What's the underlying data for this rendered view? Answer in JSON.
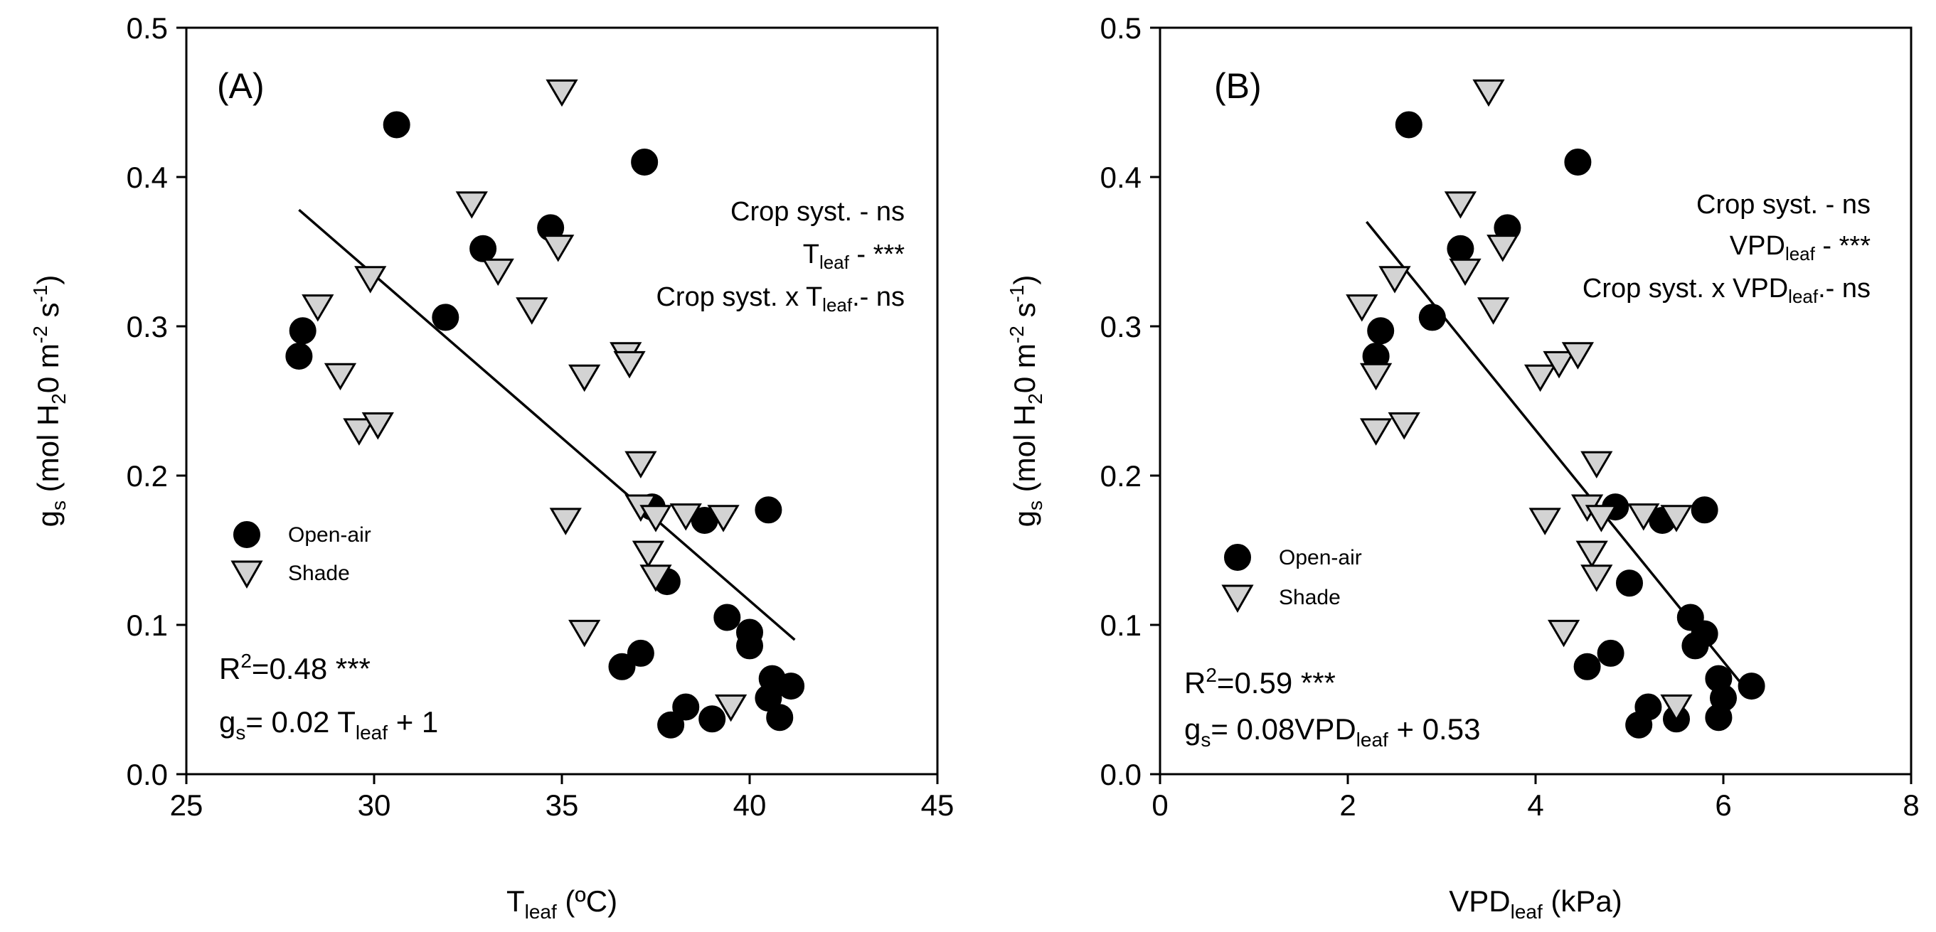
{
  "chart_data": [
    {
      "type": "scatter",
      "panel_label": "(A)",
      "xlabel_main": "T",
      "xlabel_sub": "leaf",
      "xlabel_unit": " (ºC)",
      "ylabel_pre": "g",
      "ylabel_sub": "s",
      "ylabel_mid": " (mol H",
      "ylabel_sub2": "2",
      "ylabel_mid2": "0 m",
      "ylabel_sup1": "-2",
      "ylabel_mid3": " s",
      "ylabel_sup2": "-1",
      "ylabel_end": ")",
      "xlim": [
        25,
        45
      ],
      "ylim": [
        0.0,
        0.5
      ],
      "xticks": [
        "25",
        "30",
        "35",
        "40",
        "45"
      ],
      "yticks": [
        "0.0",
        "0.1",
        "0.2",
        "0.3",
        "0.4",
        "0.5"
      ],
      "annotations": {
        "line1": "Crop syst. - ns",
        "line2_main": "T",
        "line2_sub": "leaf",
        "line2_end": " - ***",
        "line3_main": "Crop syst. x T",
        "line3_sub": "leaf",
        "line3_end": ".- ns"
      },
      "stats": {
        "r2_pre": "R",
        "r2_sup": "2",
        "r2_end": "=0.48 ***",
        "eq_pre": "g",
        "eq_sub": "s",
        "eq_mid": "= 0.02 T",
        "eq_sub2": "leaf",
        "eq_end": " + 1"
      },
      "legend": {
        "open_air": "Open-air",
        "shade": "Shade",
        "position": "lower-left"
      },
      "regression": {
        "x": [
          28.0,
          41.2
        ],
        "y": [
          0.378,
          0.09
        ]
      },
      "series": [
        {
          "name": "Open-air",
          "marker": "circle",
          "color": "#000000",
          "points": [
            [
              28.0,
              0.28
            ],
            [
              28.1,
              0.297
            ],
            [
              30.6,
              0.435
            ],
            [
              31.9,
              0.306
            ],
            [
              32.9,
              0.352
            ],
            [
              34.7,
              0.366
            ],
            [
              37.2,
              0.41
            ],
            [
              37.4,
              0.179
            ],
            [
              37.8,
              0.129
            ],
            [
              38.8,
              0.17
            ],
            [
              36.6,
              0.072
            ],
            [
              37.1,
              0.081
            ],
            [
              37.9,
              0.033
            ],
            [
              38.3,
              0.045
            ],
            [
              39.0,
              0.037
            ],
            [
              39.4,
              0.105
            ],
            [
              40.0,
              0.095
            ],
            [
              40.0,
              0.086
            ],
            [
              40.5,
              0.177
            ],
            [
              40.6,
              0.064
            ],
            [
              40.5,
              0.051
            ],
            [
              40.8,
              0.038
            ],
            [
              41.1,
              0.059
            ]
          ]
        },
        {
          "name": "Shade",
          "marker": "triangle-down",
          "color": "#d3d3d3",
          "points": [
            [
              28.5,
              0.314
            ],
            [
              29.1,
              0.268
            ],
            [
              29.6,
              0.231
            ],
            [
              29.9,
              0.333
            ],
            [
              30.1,
              0.235
            ],
            [
              32.6,
              0.383
            ],
            [
              33.3,
              0.338
            ],
            [
              34.2,
              0.312
            ],
            [
              35.0,
              0.458
            ],
            [
              34.9,
              0.354
            ],
            [
              35.1,
              0.171
            ],
            [
              35.6,
              0.267
            ],
            [
              35.6,
              0.096
            ],
            [
              36.7,
              0.282
            ],
            [
              36.8,
              0.276
            ],
            [
              37.1,
              0.209
            ],
            [
              37.1,
              0.18
            ],
            [
              37.5,
              0.173
            ],
            [
              37.3,
              0.149
            ],
            [
              37.5,
              0.133
            ],
            [
              38.3,
              0.174
            ],
            [
              39.3,
              0.173
            ],
            [
              39.5,
              0.046
            ]
          ]
        }
      ]
    },
    {
      "type": "scatter",
      "panel_label": "(B)",
      "xlabel_main": "VPD",
      "xlabel_sub": "leaf",
      "xlabel_unit": " (kPa)",
      "ylabel_pre": "g",
      "ylabel_sub": "s",
      "ylabel_mid": " (mol H",
      "ylabel_sub2": "2",
      "ylabel_mid2": "0 m",
      "ylabel_sup1": "-2",
      "ylabel_mid3": " s",
      "ylabel_sup2": "-1",
      "ylabel_end": ")",
      "xlim": [
        0,
        8
      ],
      "ylim": [
        0.0,
        0.5
      ],
      "xticks": [
        "0",
        "2",
        "4",
        "6",
        "8"
      ],
      "yticks": [
        "0.0",
        "0.1",
        "0.2",
        "0.3",
        "0.4",
        "0.5"
      ],
      "annotations": {
        "line1": "Crop syst. - ns",
        "line2_main": "VPD",
        "line2_sub": "leaf",
        "line2_end": " - ***",
        "line3_main": "Crop syst. x VPD",
        "line3_sub": "leaf",
        "line3_end": ".- ns"
      },
      "stats": {
        "r2_pre": "R",
        "r2_sup": "2",
        "r2_end": "=0.59 ***",
        "eq_pre": "g",
        "eq_sub": "s",
        "eq_mid": "= 0.08VPD",
        "eq_sub2": "leaf",
        "eq_end": " + 0.53"
      },
      "legend": {
        "open_air": "Open-air",
        "shade": "Shade",
        "position": "lower-left"
      },
      "regression": {
        "x": [
          2.2,
          6.2
        ],
        "y": [
          0.37,
          0.06
        ]
      },
      "series": [
        {
          "name": "Open-air",
          "marker": "circle",
          "color": "#000000",
          "points": [
            [
              2.3,
              0.28
            ],
            [
              2.35,
              0.297
            ],
            [
              2.65,
              0.435
            ],
            [
              2.9,
              0.306
            ],
            [
              3.2,
              0.352
            ],
            [
              3.7,
              0.366
            ],
            [
              4.45,
              0.41
            ],
            [
              4.85,
              0.179
            ],
            [
              5.35,
              0.17
            ],
            [
              5.8,
              0.177
            ],
            [
              5.0,
              0.128
            ],
            [
              5.65,
              0.105
            ],
            [
              5.8,
              0.094
            ],
            [
              5.7,
              0.086
            ],
            [
              4.55,
              0.072
            ],
            [
              4.8,
              0.081
            ],
            [
              5.1,
              0.033
            ],
            [
              5.2,
              0.045
            ],
            [
              5.5,
              0.037
            ],
            [
              5.95,
              0.064
            ],
            [
              6.0,
              0.051
            ],
            [
              5.95,
              0.038
            ],
            [
              6.3,
              0.059
            ]
          ]
        },
        {
          "name": "Shade",
          "marker": "triangle-down",
          "color": "#d3d3d3",
          "points": [
            [
              2.15,
              0.314
            ],
            [
              2.3,
              0.268
            ],
            [
              2.3,
              0.231
            ],
            [
              2.5,
              0.333
            ],
            [
              2.6,
              0.235
            ],
            [
              3.2,
              0.383
            ],
            [
              3.25,
              0.338
            ],
            [
              3.65,
              0.354
            ],
            [
              3.55,
              0.312
            ],
            [
              3.5,
              0.458
            ],
            [
              4.05,
              0.267
            ],
            [
              4.25,
              0.276
            ],
            [
              4.45,
              0.282
            ],
            [
              4.1,
              0.171
            ],
            [
              4.3,
              0.096
            ],
            [
              4.55,
              0.18
            ],
            [
              4.65,
              0.209
            ],
            [
              4.6,
              0.149
            ],
            [
              4.65,
              0.133
            ],
            [
              4.7,
              0.173
            ],
            [
              5.15,
              0.174
            ],
            [
              5.5,
              0.173
            ],
            [
              5.5,
              0.046
            ]
          ]
        }
      ]
    }
  ]
}
